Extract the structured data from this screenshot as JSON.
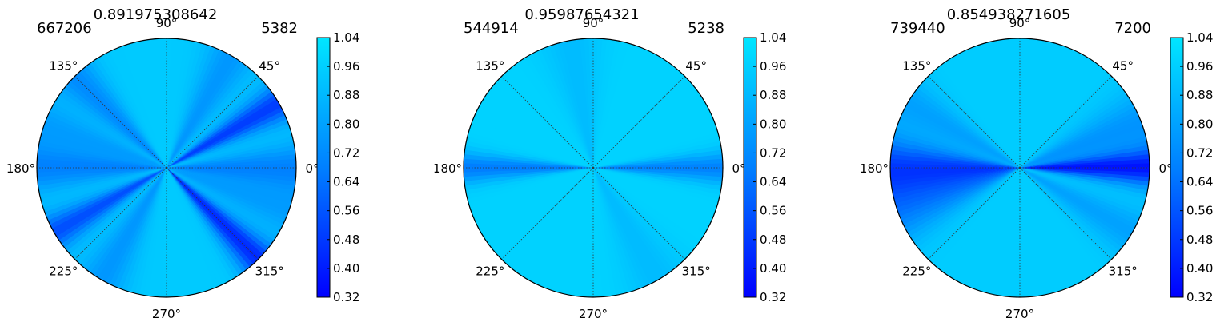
{
  "chart_data": [
    {
      "type": "polar_contour",
      "title": "0.891975308642",
      "left_label": "667206",
      "right_label": "5382",
      "angular_ticks": [
        "0°",
        "45°",
        "90°",
        "135°",
        "180°",
        "225°",
        "270°",
        "315°"
      ],
      "angle_degrees": [
        0,
        45,
        90,
        135,
        180,
        225,
        270,
        315
      ],
      "colorbar": {
        "ticks": [
          "1.04",
          "0.96",
          "0.88",
          "0.80",
          "0.72",
          "0.64",
          "0.56",
          "0.48",
          "0.40",
          "0.32"
        ],
        "range": [
          0.32,
          1.04
        ]
      },
      "value_profile": {
        "base": 0.94,
        "dips": [
          {
            "angle": 0,
            "depth": 0.25,
            "width": 8
          },
          {
            "angle": 180,
            "depth": 0.25,
            "width": 8
          },
          {
            "angle": 30,
            "depth": 0.45,
            "width": 6
          },
          {
            "angle": 210,
            "depth": 0.4,
            "width": 6
          },
          {
            "angle": 60,
            "depth": 0.18,
            "width": 8
          },
          {
            "angle": 240,
            "depth": 0.18,
            "width": 8
          },
          {
            "angle": 135,
            "depth": 0.22,
            "width": 7
          },
          {
            "angle": 315,
            "depth": 0.5,
            "width": 6
          },
          {
            "angle": 160,
            "depth": 0.15,
            "width": 8
          },
          {
            "angle": 340,
            "depth": 0.15,
            "width": 8
          }
        ]
      },
      "grid": true
    },
    {
      "type": "polar_contour",
      "title": "0.95987654321",
      "left_label": "544914",
      "right_label": "5238",
      "angular_ticks": [
        "0°",
        "45°",
        "90°",
        "135°",
        "180°",
        "225°",
        "270°",
        "315°"
      ],
      "angle_degrees": [
        0,
        45,
        90,
        135,
        180,
        225,
        270,
        315
      ],
      "colorbar": {
        "ticks": [
          "1.04",
          "0.96",
          "0.88",
          "0.80",
          "0.72",
          "0.64",
          "0.56",
          "0.48",
          "0.40",
          "0.32"
        ],
        "range": [
          0.32,
          1.04
        ]
      },
      "value_profile": {
        "base": 0.97,
        "dips": [
          {
            "angle": 0,
            "depth": 0.28,
            "width": 5
          },
          {
            "angle": 180,
            "depth": 0.3,
            "width": 5
          },
          {
            "angle": 100,
            "depth": 0.08,
            "width": 10
          },
          {
            "angle": 300,
            "depth": 0.08,
            "width": 10
          }
        ]
      },
      "grid": true
    },
    {
      "type": "polar_contour",
      "title": "0.854938271605",
      "left_label": "739440",
      "right_label": "7200",
      "angular_ticks": [
        "0°",
        "45°",
        "90°",
        "135°",
        "180°",
        "225°",
        "270°",
        "315°"
      ],
      "angle_degrees": [
        0,
        45,
        90,
        135,
        180,
        225,
        270,
        315
      ],
      "colorbar": {
        "ticks": [
          "1.04",
          "0.96",
          "0.88",
          "0.80",
          "0.72",
          "0.64",
          "0.56",
          "0.48",
          "0.40",
          "0.32"
        ],
        "range": [
          0.32,
          1.04
        ]
      },
      "value_profile": {
        "base": 0.95,
        "dips": [
          {
            "angle": 0,
            "depth": 0.55,
            "width": 6
          },
          {
            "angle": 180,
            "depth": 0.45,
            "width": 10
          },
          {
            "angle": 20,
            "depth": 0.2,
            "width": 10
          },
          {
            "angle": 200,
            "depth": 0.25,
            "width": 10
          },
          {
            "angle": 150,
            "depth": 0.15,
            "width": 8
          },
          {
            "angle": 330,
            "depth": 0.15,
            "width": 8
          }
        ]
      },
      "grid": true
    }
  ],
  "colors": {
    "low": "#0000ff",
    "mid": "#0080ff",
    "high": "#00e6ff",
    "base": "#00cfff",
    "edge": "#000000",
    "grid": "#333333"
  }
}
